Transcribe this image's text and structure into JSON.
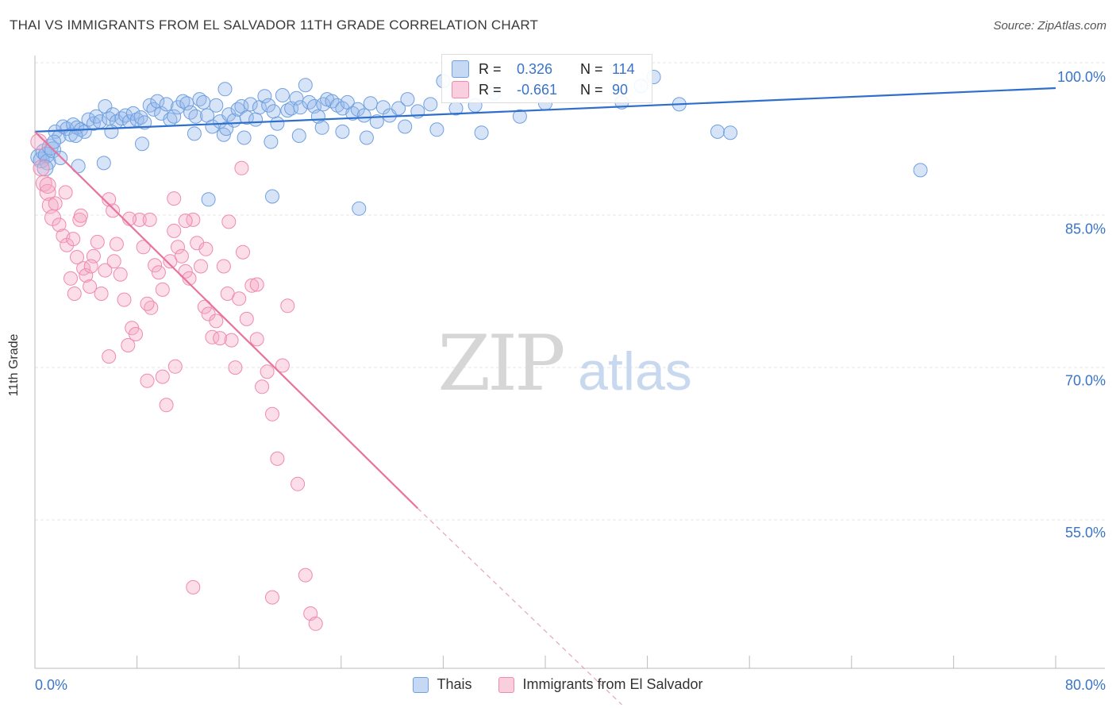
{
  "header": {
    "title": "THAI VS IMMIGRANTS FROM EL SALVADOR 11TH GRADE CORRELATION CHART",
    "source": "Source: ZipAtlas.com"
  },
  "watermark": {
    "zip": "ZIP",
    "atlas": "atlas"
  },
  "stats": [
    {
      "r_label": "R =",
      "r_value": "0.326",
      "n_label": "N =",
      "n_value": "114",
      "color": "#6fa0e0"
    },
    {
      "r_label": "R =",
      "r_value": "-0.661",
      "n_label": "N =",
      "n_value": "90",
      "color": "#f08aaa"
    }
  ],
  "chart_data": {
    "type": "scatter",
    "title": "THAI VS IMMIGRANTS FROM EL SALVADOR 11TH GRADE CORRELATION CHART",
    "xlabel": "",
    "ylabel": "11th Grade",
    "xlim": [
      0,
      80
    ],
    "ylim": [
      40,
      100
    ],
    "x_ticks_labels": [
      "0.0%",
      "80.0%"
    ],
    "y_ticks": [
      55,
      70,
      85,
      100
    ],
    "y_ticks_labels": [
      "55.0%",
      "70.0%",
      "85.0%",
      "100.0%"
    ],
    "grid": true,
    "legend_placement": "bottom",
    "series": [
      {
        "name": "Thais",
        "color": "#6fa0e0",
        "fill": "rgba(150,185,235,0.38)",
        "trend": [
          [
            0,
            94.6
          ],
          [
            80,
            98.9
          ]
        ],
        "points": [
          [
            0.3,
            92.1
          ],
          [
            0.5,
            91.8
          ],
          [
            0.7,
            92.6
          ],
          [
            0.9,
            92.3
          ],
          [
            1.0,
            91.6
          ],
          [
            1.2,
            93.1
          ],
          [
            1.4,
            92.8
          ],
          [
            1.6,
            94.6
          ],
          [
            1.9,
            94.1
          ],
          [
            2.2,
            95.1
          ],
          [
            2.5,
            94.9
          ],
          [
            2.8,
            94.3
          ],
          [
            3.0,
            95.3
          ],
          [
            3.3,
            95.0
          ],
          [
            3.6,
            94.8
          ],
          [
            3.9,
            94.6
          ],
          [
            4.2,
            95.8
          ],
          [
            4.6,
            95.4
          ],
          [
            4.8,
            96.1
          ],
          [
            5.1,
            95.6
          ],
          [
            5.5,
            97.1
          ],
          [
            5.8,
            95.9
          ],
          [
            6.1,
            96.3
          ],
          [
            6.4,
            95.6
          ],
          [
            6.8,
            95.9
          ],
          [
            7.1,
            96.2
          ],
          [
            7.4,
            95.6
          ],
          [
            7.7,
            96.4
          ],
          [
            8.0,
            95.8
          ],
          [
            8.3,
            96.0
          ],
          [
            8.6,
            95.5
          ],
          [
            9.0,
            97.2
          ],
          [
            9.3,
            96.8
          ],
          [
            9.6,
            97.6
          ],
          [
            9.9,
            96.4
          ],
          [
            10.3,
            97.3
          ],
          [
            10.6,
            95.8
          ],
          [
            10.9,
            96.1
          ],
          [
            11.2,
            97.0
          ],
          [
            11.6,
            97.6
          ],
          [
            11.9,
            97.4
          ],
          [
            12.2,
            96.5
          ],
          [
            12.6,
            96.1
          ],
          [
            12.9,
            97.8
          ],
          [
            13.2,
            97.5
          ],
          [
            13.5,
            96.2
          ],
          [
            13.9,
            95.1
          ],
          [
            14.2,
            97.2
          ],
          [
            14.5,
            95.6
          ],
          [
            14.9,
            98.8
          ],
          [
            15.2,
            96.3
          ],
          [
            15.6,
            95.7
          ],
          [
            15.9,
            96.8
          ],
          [
            16.2,
            97.1
          ],
          [
            16.6,
            96.0
          ],
          [
            16.9,
            97.3
          ],
          [
            17.3,
            95.8
          ],
          [
            17.6,
            97.0
          ],
          [
            18.0,
            98.1
          ],
          [
            18.3,
            97.2
          ],
          [
            18.7,
            96.6
          ],
          [
            19.0,
            95.4
          ],
          [
            19.4,
            98.2
          ],
          [
            19.8,
            96.7
          ],
          [
            20.1,
            96.9
          ],
          [
            20.5,
            97.9
          ],
          [
            20.8,
            97.0
          ],
          [
            21.2,
            99.2
          ],
          [
            21.5,
            97.5
          ],
          [
            21.9,
            97.1
          ],
          [
            22.2,
            96.1
          ],
          [
            22.6,
            97.3
          ],
          [
            22.9,
            97.8
          ],
          [
            23.3,
            97.6
          ],
          [
            23.7,
            97.2
          ],
          [
            24.1,
            96.9
          ],
          [
            24.5,
            97.5
          ],
          [
            24.9,
            96.4
          ],
          [
            25.3,
            96.8
          ],
          [
            25.8,
            96.2
          ],
          [
            26.3,
            97.4
          ],
          [
            26.8,
            95.6
          ],
          [
            27.3,
            97.0
          ],
          [
            27.8,
            96.2
          ],
          [
            28.5,
            96.9
          ],
          [
            29.2,
            97.8
          ],
          [
            30.0,
            96.6
          ],
          [
            31.0,
            97.3
          ],
          [
            32.0,
            99.6
          ],
          [
            33.0,
            96.9
          ],
          [
            34.5,
            97.2
          ],
          [
            36.0,
            98.4
          ],
          [
            38.0,
            96.1
          ],
          [
            40.0,
            97.4
          ],
          [
            46.0,
            97.5
          ],
          [
            47.5,
            99.1
          ],
          [
            48.5,
            100.0
          ],
          [
            50.5,
            97.3
          ],
          [
            53.5,
            94.6
          ],
          [
            54.5,
            94.5
          ],
          [
            69.4,
            90.8
          ],
          [
            1.5,
            93.6
          ],
          [
            3.2,
            94.2
          ],
          [
            6.0,
            94.6
          ],
          [
            8.4,
            93.4
          ],
          [
            12.5,
            94.4
          ],
          [
            14.8,
            94.3
          ],
          [
            16.4,
            94.0
          ],
          [
            18.5,
            93.6
          ],
          [
            20.7,
            94.2
          ],
          [
            22.5,
            95.0
          ],
          [
            24.1,
            94.6
          ],
          [
            26.0,
            94.0
          ],
          [
            29.0,
            95.1
          ],
          [
            31.5,
            94.8
          ],
          [
            13.6,
            87.9
          ],
          [
            18.6,
            88.2
          ],
          [
            25.4,
            87.0
          ],
          [
            3.4,
            91.2
          ],
          [
            0.8,
            91.0
          ],
          [
            2.0,
            92.0
          ],
          [
            5.4,
            91.5
          ],
          [
            15.0,
            94.9
          ],
          [
            35.0,
            94.5
          ]
        ]
      },
      {
        "name": "Immigrants from El Salvador",
        "color": "#f08aaa",
        "fill": "rgba(244,168,196,0.38)",
        "trend": [
          [
            0,
            94.6
          ],
          [
            30,
            57.4
          ]
        ],
        "trend_dashed": [
          [
            30,
            57.4
          ],
          [
            46,
            38.0
          ]
        ],
        "points": [
          [
            0.3,
            93.6
          ],
          [
            0.5,
            91.0
          ],
          [
            0.7,
            89.5
          ],
          [
            1.0,
            88.6
          ],
          [
            1.2,
            87.3
          ],
          [
            1.4,
            86.1
          ],
          [
            1.6,
            87.5
          ],
          [
            1.9,
            85.4
          ],
          [
            2.2,
            84.3
          ],
          [
            2.5,
            83.4
          ],
          [
            2.8,
            80.1
          ],
          [
            3.0,
            84.0
          ],
          [
            3.3,
            82.2
          ],
          [
            3.5,
            85.9
          ],
          [
            3.8,
            81.1
          ],
          [
            4.0,
            80.4
          ],
          [
            4.3,
            79.3
          ],
          [
            4.6,
            82.3
          ],
          [
            4.9,
            83.7
          ],
          [
            5.2,
            78.6
          ],
          [
            5.5,
            80.9
          ],
          [
            5.8,
            72.4
          ],
          [
            6.1,
            86.8
          ],
          [
            6.4,
            83.5
          ],
          [
            6.7,
            80.5
          ],
          [
            7.0,
            78.0
          ],
          [
            7.3,
            73.5
          ],
          [
            7.6,
            75.2
          ],
          [
            7.9,
            74.6
          ],
          [
            8.2,
            85.9
          ],
          [
            8.5,
            83.2
          ],
          [
            8.8,
            70.0
          ],
          [
            9.1,
            77.2
          ],
          [
            9.4,
            81.4
          ],
          [
            9.7,
            80.7
          ],
          [
            10.0,
            79.0
          ],
          [
            10.3,
            67.6
          ],
          [
            10.6,
            81.8
          ],
          [
            10.9,
            84.8
          ],
          [
            11.2,
            83.2
          ],
          [
            11.5,
            82.3
          ],
          [
            11.8,
            80.8
          ],
          [
            12.1,
            80.1
          ],
          [
            12.4,
            85.9
          ],
          [
            12.7,
            83.6
          ],
          [
            13.0,
            81.3
          ],
          [
            13.3,
            77.3
          ],
          [
            13.6,
            76.6
          ],
          [
            13.9,
            74.3
          ],
          [
            14.2,
            75.9
          ],
          [
            14.5,
            74.2
          ],
          [
            14.8,
            81.3
          ],
          [
            15.1,
            78.6
          ],
          [
            15.4,
            74.0
          ],
          [
            15.7,
            71.3
          ],
          [
            16.0,
            78.1
          ],
          [
            16.3,
            82.7
          ],
          [
            16.6,
            76.1
          ],
          [
            17.0,
            79.4
          ],
          [
            17.4,
            74.1
          ],
          [
            17.8,
            69.4
          ],
          [
            18.2,
            70.9
          ],
          [
            18.6,
            66.7
          ],
          [
            19.0,
            62.3
          ],
          [
            19.4,
            71.5
          ],
          [
            19.8,
            77.4
          ],
          [
            20.6,
            59.8
          ],
          [
            21.2,
            50.8
          ],
          [
            21.6,
            47.0
          ],
          [
            22.0,
            46.0
          ],
          [
            18.6,
            48.6
          ],
          [
            12.4,
            49.6
          ],
          [
            16.2,
            91.0
          ],
          [
            10.9,
            88.0
          ],
          [
            2.4,
            88.6
          ],
          [
            1.0,
            89.3
          ],
          [
            3.6,
            86.3
          ],
          [
            5.8,
            87.9
          ],
          [
            7.4,
            86.0
          ],
          [
            9.0,
            85.9
          ],
          [
            11.8,
            85.8
          ],
          [
            13.4,
            83.0
          ],
          [
            15.2,
            85.7
          ],
          [
            6.2,
            81.8
          ],
          [
            4.4,
            81.3
          ],
          [
            3.1,
            78.6
          ],
          [
            8.8,
            77.6
          ],
          [
            10.0,
            70.4
          ],
          [
            11.0,
            71.4
          ],
          [
            17.4,
            79.5
          ]
        ]
      }
    ]
  },
  "legend": [
    {
      "name": "Thais",
      "color": "#6fa0e0"
    },
    {
      "name": "Immigrants from El Salvador",
      "color": "#f08aaa"
    }
  ]
}
